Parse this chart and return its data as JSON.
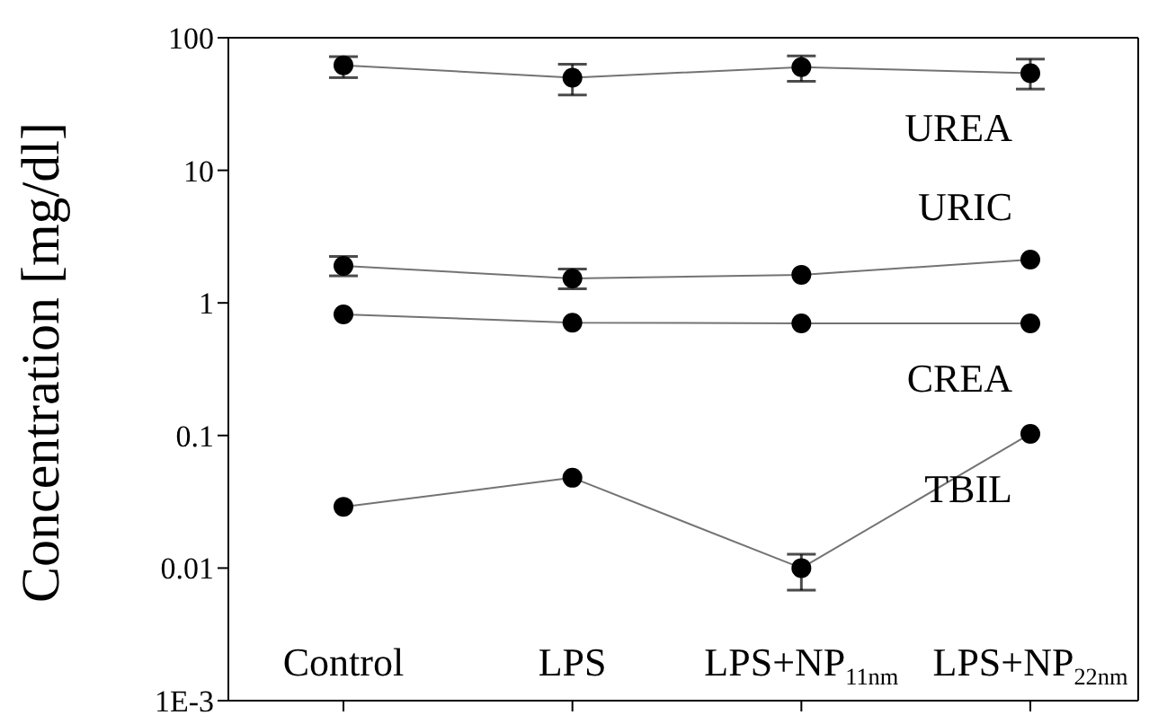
{
  "chart_data": {
    "type": "line",
    "ylabel": "Concentration [mg/dl]",
    "categories": [
      "Control",
      "LPS",
      "LPS+NP$_{11nm}$",
      "LPS+NP$_{22nm}$"
    ],
    "log": true,
    "ylim": [
      0.001,
      100
    ],
    "yticks": [
      {
        "value": 0.001,
        "label": "1E-3"
      },
      0.01,
      0.1,
      1,
      10,
      100
    ],
    "marker": "circle",
    "series": [
      {
        "name": "UREA",
        "color": "#000000",
        "values": [
          62,
          50,
          60,
          54
        ],
        "errors": [
          [
            50,
            72
          ],
          [
            37,
            63
          ],
          [
            47,
            73
          ],
          [
            41,
            69
          ]
        ]
      },
      {
        "name": "URIC",
        "color": "#000000",
        "values": [
          1.9,
          1.53,
          1.63,
          2.12
        ],
        "errors": [
          [
            1.6,
            2.24
          ],
          [
            1.28,
            1.8
          ],
          null,
          null
        ]
      },
      {
        "name": "CREA",
        "color": "#000000",
        "values": [
          0.82,
          0.71,
          0.7,
          0.7
        ]
      },
      {
        "name": "TBIL",
        "color": "#000000",
        "values": [
          0.029,
          0.048,
          0.01,
          0.103
        ],
        "errors": [
          null,
          null,
          [
            0.0068,
            0.0127
          ],
          null
        ]
      }
    ]
  }
}
